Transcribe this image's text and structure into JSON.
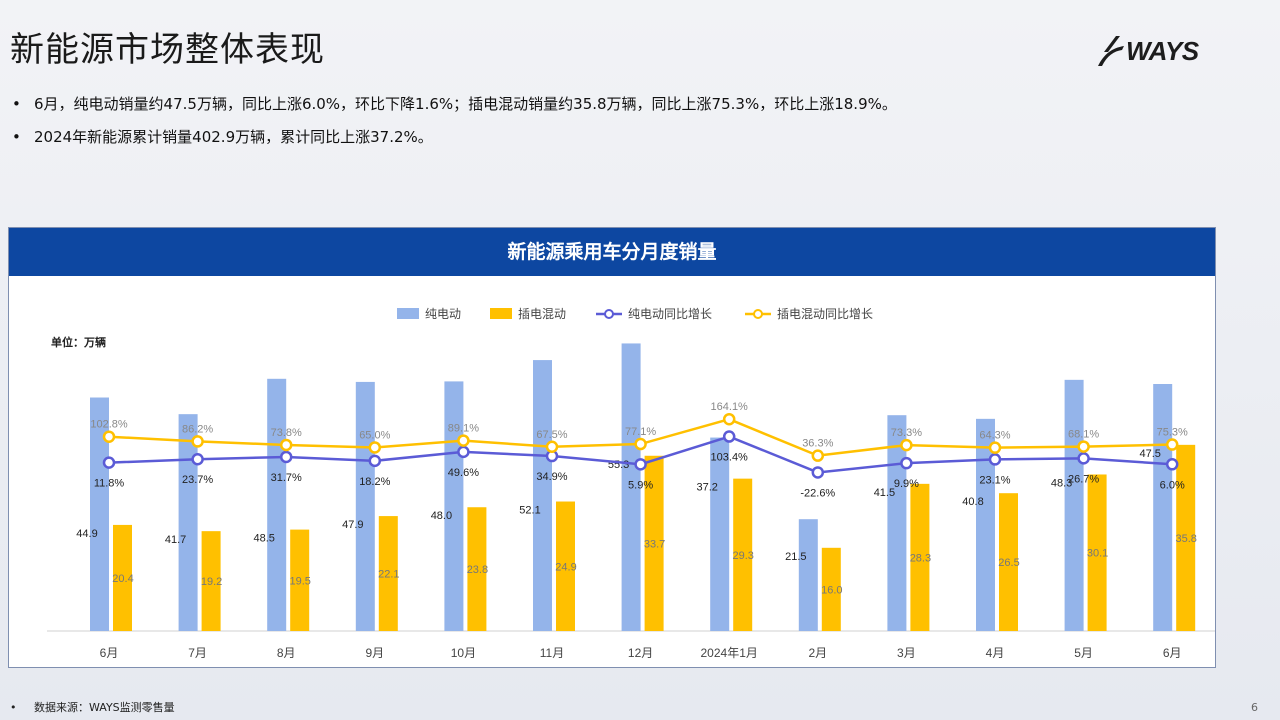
{
  "header": {
    "title": "新能源市场整体表现",
    "logo_text": "WAYS"
  },
  "bullets": [
    "6月，纯电动销量约47.5万辆，同比上涨6.0%，环比下降1.6%；插电混动销量约35.8万辆，同比上涨75.3%，环比上涨18.9%。",
    "2024年新能源累计销量402.9万辆，累计同比上涨37.2%。"
  ],
  "chart_data": {
    "type": "bar",
    "title": "新能源乘用车分月度销量",
    "unit_label": "单位：万辆",
    "categories": [
      "6月",
      "7月",
      "8月",
      "9月",
      "10月",
      "11月",
      "12月",
      "2024年1月",
      "2月",
      "3月",
      "4月",
      "5月",
      "6月"
    ],
    "series": [
      {
        "name": "纯电动",
        "type": "bar",
        "color": "#94b4ea",
        "values": [
          44.9,
          41.7,
          48.5,
          47.9,
          48.0,
          52.1,
          55.3,
          37.2,
          21.5,
          41.5,
          40.8,
          48.3,
          47.5
        ]
      },
      {
        "name": "插电混动",
        "type": "bar",
        "color": "#ffc000",
        "values": [
          20.4,
          19.2,
          19.5,
          22.1,
          23.8,
          24.9,
          33.7,
          29.3,
          16.0,
          28.3,
          26.5,
          30.1,
          35.8
        ]
      },
      {
        "name": "纯电动同比增长",
        "type": "line",
        "color": "#5b5bd6",
        "values": [
          11.8,
          23.7,
          31.7,
          18.2,
          49.6,
          34.9,
          5.9,
          103.4,
          -22.6,
          9.9,
          23.1,
          26.7,
          6.0
        ]
      },
      {
        "name": "插电混动同比增长",
        "type": "line",
        "color": "#ffc000",
        "values": [
          102.8,
          86.2,
          73.8,
          65.0,
          89.1,
          67.5,
          77.1,
          164.1,
          36.3,
          73.3,
          64.3,
          68.1,
          75.3
        ]
      }
    ],
    "legend_position": "top-center",
    "grid": false
  },
  "footer": {
    "source": "数据来源：WAYS监测零售量",
    "page_number": "6"
  }
}
